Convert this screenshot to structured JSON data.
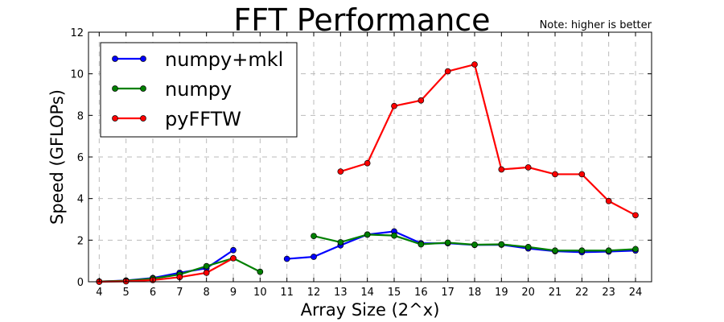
{
  "chart_data": {
    "type": "line",
    "title": "FFT Performance",
    "note": "Note: higher is better",
    "xlabel": "Array Size (2^x)",
    "ylabel": "Speed (GFLOPs)",
    "xlim": [
      3.6,
      24.6
    ],
    "ylim": [
      0,
      12
    ],
    "xticks": [
      4,
      5,
      6,
      7,
      8,
      9,
      10,
      11,
      12,
      13,
      14,
      15,
      16,
      17,
      18,
      19,
      20,
      21,
      22,
      23,
      24
    ],
    "yticks": [
      0,
      2,
      4,
      6,
      8,
      10,
      12
    ],
    "grid": true,
    "legend_position": "upper-left",
    "series": [
      {
        "name": "numpy+mkl",
        "color": "#0000ff",
        "segments": [
          [
            [
              4,
              0.01
            ],
            [
              5,
              0.06
            ],
            [
              6,
              0.18
            ],
            [
              7,
              0.43
            ],
            [
              8,
              0.65
            ],
            [
              9,
              1.52
            ]
          ],
          [
            [
              11,
              1.1
            ],
            [
              12,
              1.2
            ],
            [
              13,
              1.75
            ],
            [
              14,
              2.27
            ],
            [
              15,
              2.42
            ],
            [
              16,
              1.85
            ],
            [
              17,
              1.85
            ],
            [
              18,
              1.77
            ],
            [
              19,
              1.78
            ],
            [
              20,
              1.6
            ],
            [
              21,
              1.47
            ],
            [
              22,
              1.42
            ],
            [
              23,
              1.45
            ],
            [
              24,
              1.5
            ]
          ]
        ]
      },
      {
        "name": "numpy",
        "color": "#008000",
        "segments": [
          [
            [
              4,
              0.01
            ],
            [
              5,
              0.05
            ],
            [
              6,
              0.15
            ],
            [
              7,
              0.35
            ],
            [
              8,
              0.75
            ],
            [
              9,
              1.13
            ],
            [
              10,
              0.48
            ]
          ],
          [
            [
              12,
              2.2
            ],
            [
              13,
              1.9
            ],
            [
              14,
              2.27
            ],
            [
              15,
              2.22
            ],
            [
              16,
              1.8
            ],
            [
              17,
              1.88
            ],
            [
              18,
              1.78
            ],
            [
              19,
              1.8
            ],
            [
              20,
              1.67
            ],
            [
              21,
              1.5
            ],
            [
              22,
              1.5
            ],
            [
              23,
              1.5
            ],
            [
              24,
              1.57
            ]
          ]
        ]
      },
      {
        "name": "pyFFTW",
        "color": "#ff0000",
        "segments": [
          [
            [
              4,
              0.0
            ],
            [
              5,
              0.02
            ],
            [
              6,
              0.08
            ],
            [
              7,
              0.22
            ],
            [
              8,
              0.43
            ],
            [
              9,
              1.13
            ]
          ],
          [
            [
              13,
              5.3
            ],
            [
              14,
              5.7
            ],
            [
              15,
              8.45
            ],
            [
              16,
              8.72
            ],
            [
              17,
              10.12
            ],
            [
              18,
              10.45
            ],
            [
              19,
              5.4
            ],
            [
              20,
              5.5
            ],
            [
              21,
              5.17
            ],
            [
              22,
              5.17
            ],
            [
              23,
              3.88
            ],
            [
              24,
              3.2
            ]
          ]
        ]
      }
    ]
  }
}
